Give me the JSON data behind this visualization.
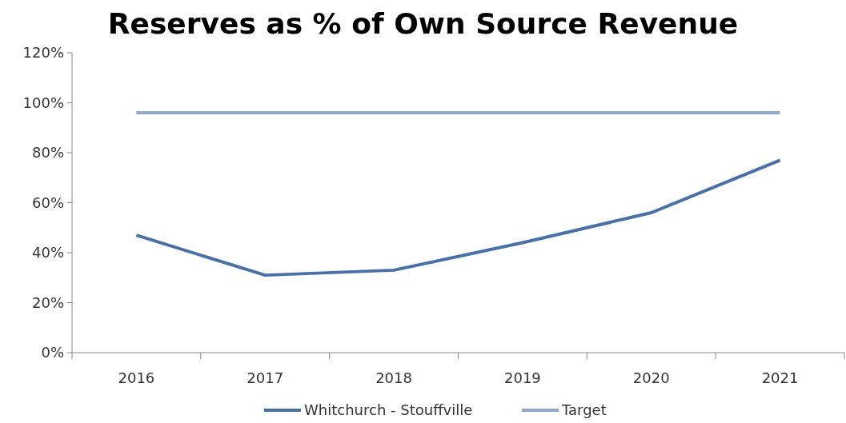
{
  "chart_data": {
    "type": "line",
    "title": "Reserves as % of Own Source Revenue",
    "categories": [
      "2016",
      "2017",
      "2018",
      "2019",
      "2020",
      "2021"
    ],
    "series": [
      {
        "name": "Whitchurch - Stouffville",
        "color": "#4a70a8",
        "values": [
          47,
          31,
          33,
          44,
          56,
          77
        ]
      },
      {
        "name": "Target",
        "color": "#8fa8d0",
        "values": [
          96,
          96,
          96,
          96,
          96,
          96
        ]
      }
    ],
    "ylim": [
      0,
      120
    ],
    "yticks": [
      {
        "value": 0,
        "label": "0%"
      },
      {
        "value": 20,
        "label": "20%"
      },
      {
        "value": 40,
        "label": "40%"
      },
      {
        "value": 60,
        "label": "60%"
      },
      {
        "value": 80,
        "label": "80%"
      },
      {
        "value": 100,
        "label": "100%"
      },
      {
        "value": 120,
        "label": "120%"
      }
    ],
    "grid": false,
    "legend": "bottom",
    "marker": "none",
    "line_style": "solid"
  }
}
